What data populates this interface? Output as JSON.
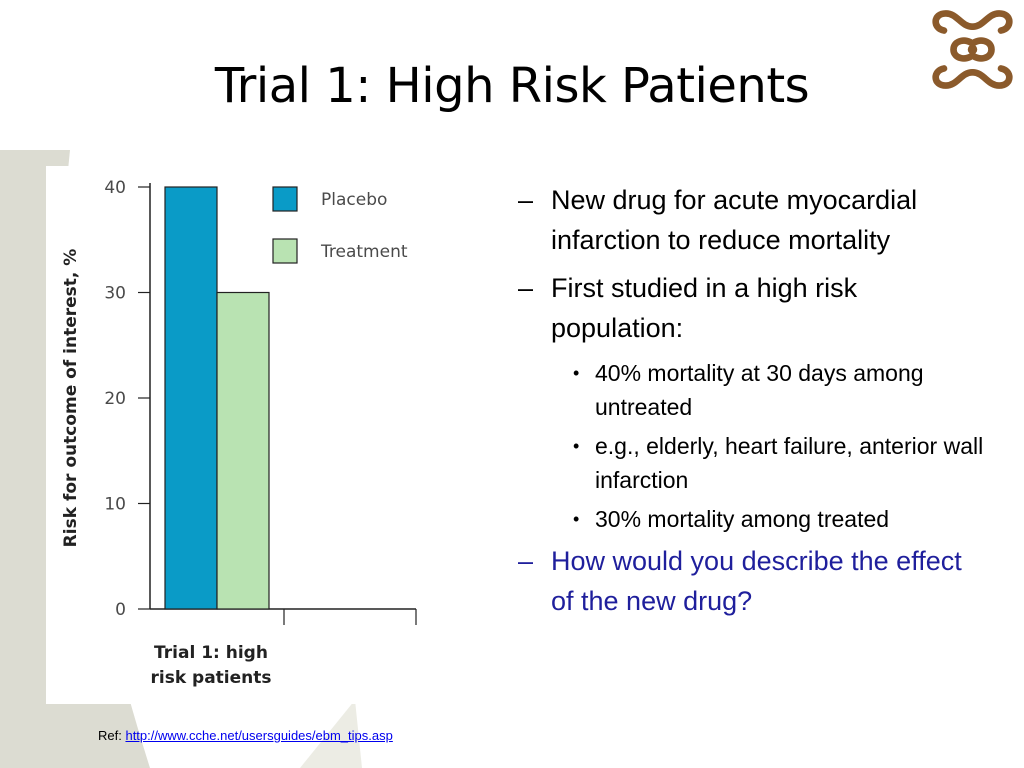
{
  "slide": {
    "title": "Trial 1: High Risk Patients",
    "bullets": [
      {
        "text": "New drug for acute myocardial infarction to reduce mortality"
      },
      {
        "text": "First studied in a high risk population:",
        "sub": [
          "40% mortality at 30 days among untreated",
          "e.g., elderly, heart failure, anterior wall infarction",
          "30% mortality among treated"
        ]
      },
      {
        "text": "How would you describe the effect of the new drug?",
        "highlight": true
      }
    ],
    "ref_label": "Ref:",
    "ref_link": "http://www.cche.net/usersguides/ebm_tips.asp",
    "colors": {
      "question": "#1f1f9c",
      "placebo": "#0a9bc7",
      "treatment": "#b9e3b2"
    }
  },
  "chart_data": {
    "type": "bar",
    "categories": [
      "Trial 1: high risk patients"
    ],
    "category_label_lines": [
      "Trial 1: high",
      "risk patients"
    ],
    "series": [
      {
        "name": "Placebo",
        "values": [
          40
        ],
        "color": "#0a9bc7"
      },
      {
        "name": "Treatment",
        "values": [
          30
        ],
        "color": "#b9e3b2"
      }
    ],
    "ylabel": "Risk for outcome of interest, %",
    "ylim": [
      0,
      40
    ],
    "yticks": [
      0,
      10,
      20,
      30,
      40
    ],
    "legend_position": "top-right",
    "grid": false
  }
}
